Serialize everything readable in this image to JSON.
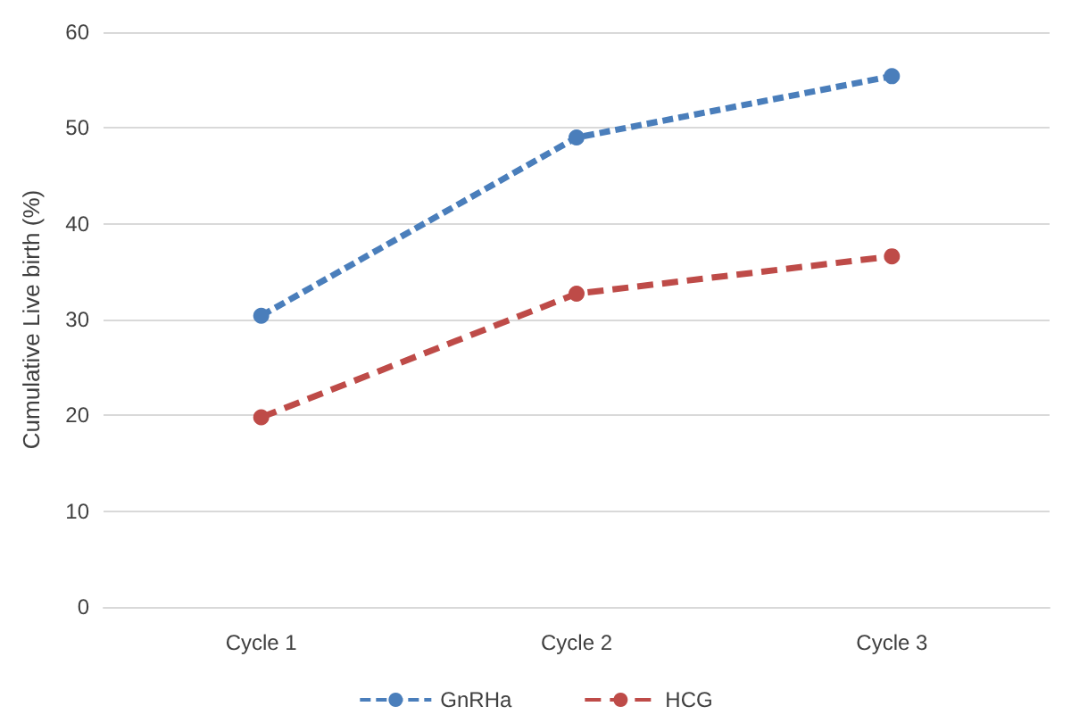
{
  "chart_data": {
    "type": "line",
    "ylabel": "Cumulative Live birth (%)",
    "categories": [
      "Cycle 1",
      "Cycle 2",
      "Cycle 3"
    ],
    "series": [
      {
        "name": "GnRHa",
        "color": "#4a7ebb",
        "values": [
          30.4,
          49,
          55.4
        ]
      },
      {
        "name": "HCG",
        "color": "#be4b48",
        "values": [
          19.8,
          32.7,
          36.6
        ]
      }
    ],
    "ylim": [
      0,
      60
    ],
    "yticks": [
      0,
      10,
      20,
      30,
      40,
      50,
      60
    ],
    "grid": "y",
    "legend": "bottom",
    "marker": "circle",
    "line_style": "dashed"
  }
}
